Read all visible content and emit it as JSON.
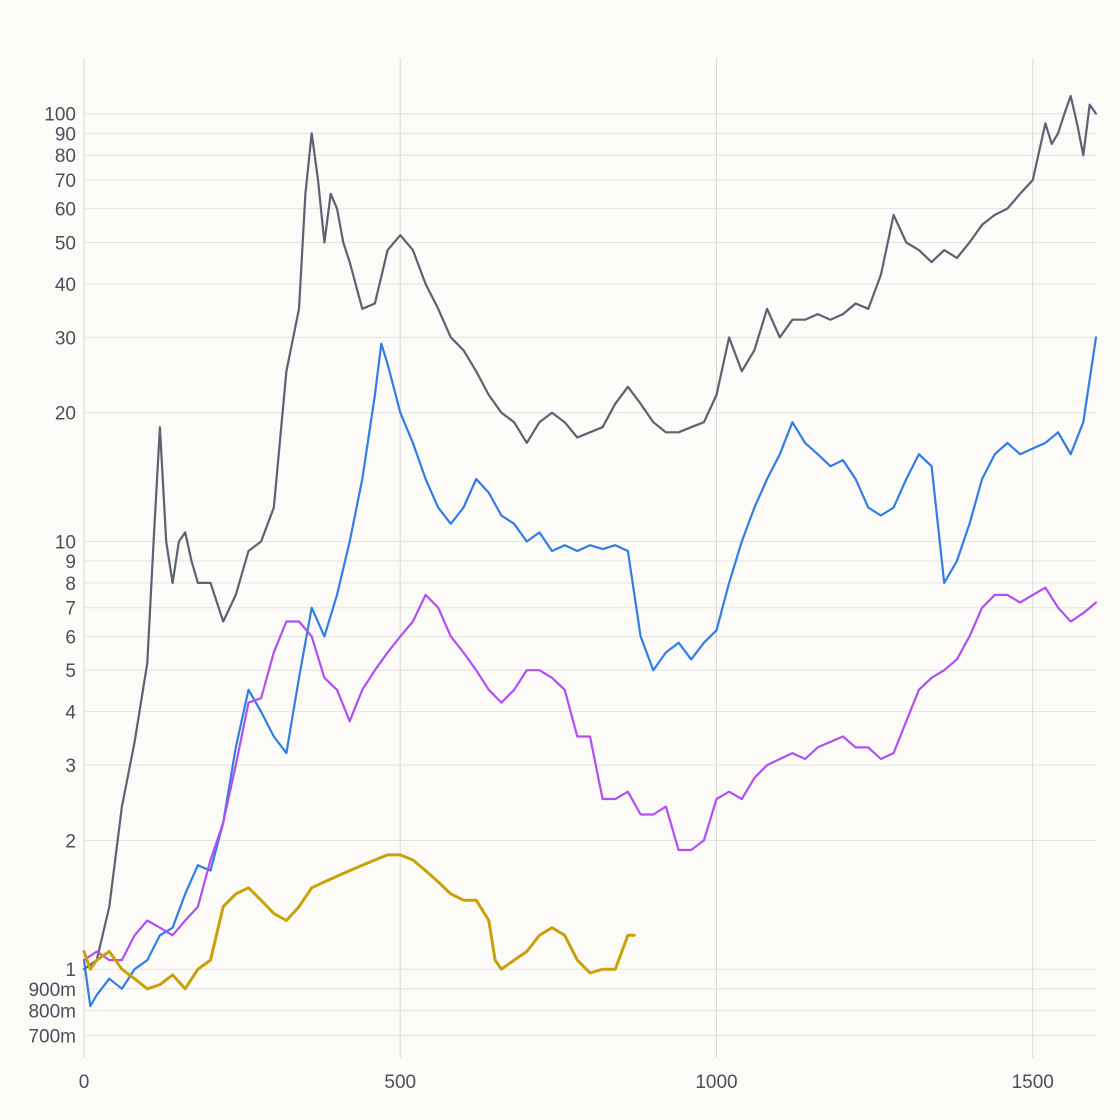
{
  "chart_data": {
    "type": "line",
    "title": "",
    "xlabel": "",
    "ylabel": "",
    "y_scale": "log",
    "xlim": [
      0,
      1600
    ],
    "ylim": [
      0.62,
      135
    ],
    "grid": true,
    "x_ticks": [
      {
        "value": 0,
        "label": "0"
      },
      {
        "value": 500,
        "label": "500"
      },
      {
        "value": 1000,
        "label": "1000"
      },
      {
        "value": 1500,
        "label": "1500"
      }
    ],
    "y_ticks": [
      {
        "value": 0.7,
        "label": "700m"
      },
      {
        "value": 0.8,
        "label": "800m"
      },
      {
        "value": 0.9,
        "label": "900m"
      },
      {
        "value": 1,
        "label": "1"
      },
      {
        "value": 2,
        "label": "2"
      },
      {
        "value": 3,
        "label": "3"
      },
      {
        "value": 4,
        "label": "4"
      },
      {
        "value": 5,
        "label": "5"
      },
      {
        "value": 6,
        "label": "6"
      },
      {
        "value": 7,
        "label": "7"
      },
      {
        "value": 8,
        "label": "8"
      },
      {
        "value": 9,
        "label": "9"
      },
      {
        "value": 10,
        "label": "10"
      },
      {
        "value": 20,
        "label": "20"
      },
      {
        "value": 30,
        "label": "30"
      },
      {
        "value": 40,
        "label": "40"
      },
      {
        "value": 50,
        "label": "50"
      },
      {
        "value": 60,
        "label": "60"
      },
      {
        "value": 70,
        "label": "70"
      },
      {
        "value": 80,
        "label": "80"
      },
      {
        "value": 90,
        "label": "90"
      },
      {
        "value": 100,
        "label": "100"
      }
    ],
    "series": [
      {
        "color": "#5b6272",
        "points": [
          [
            0,
            1
          ],
          [
            20,
            1.05
          ],
          [
            40,
            1.4
          ],
          [
            60,
            2.4
          ],
          [
            80,
            3.4
          ],
          [
            100,
            5.2
          ],
          [
            110,
            10
          ],
          [
            120,
            18.5
          ],
          [
            130,
            10
          ],
          [
            140,
            8
          ],
          [
            150,
            10
          ],
          [
            160,
            10.5
          ],
          [
            170,
            9
          ],
          [
            180,
            8
          ],
          [
            200,
            8
          ],
          [
            220,
            6.5
          ],
          [
            240,
            7.5
          ],
          [
            260,
            9.5
          ],
          [
            280,
            10
          ],
          [
            300,
            12
          ],
          [
            320,
            25
          ],
          [
            340,
            35
          ],
          [
            350,
            65
          ],
          [
            360,
            90
          ],
          [
            370,
            70
          ],
          [
            380,
            50
          ],
          [
            390,
            65
          ],
          [
            400,
            60
          ],
          [
            410,
            50
          ],
          [
            420,
            45
          ],
          [
            440,
            35
          ],
          [
            460,
            36
          ],
          [
            480,
            48
          ],
          [
            500,
            52
          ],
          [
            520,
            48
          ],
          [
            540,
            40
          ],
          [
            560,
            35
          ],
          [
            580,
            30
          ],
          [
            600,
            28
          ],
          [
            620,
            25
          ],
          [
            640,
            22
          ],
          [
            660,
            20
          ],
          [
            680,
            19
          ],
          [
            700,
            17
          ],
          [
            720,
            19
          ],
          [
            740,
            20
          ],
          [
            760,
            19
          ],
          [
            780,
            17.5
          ],
          [
            800,
            18
          ],
          [
            820,
            18.5
          ],
          [
            840,
            21
          ],
          [
            860,
            23
          ],
          [
            880,
            21
          ],
          [
            900,
            19
          ],
          [
            920,
            18
          ],
          [
            940,
            18
          ],
          [
            960,
            18.5
          ],
          [
            980,
            19
          ],
          [
            1000,
            22
          ],
          [
            1020,
            30
          ],
          [
            1040,
            25
          ],
          [
            1060,
            28
          ],
          [
            1080,
            35
          ],
          [
            1100,
            30
          ],
          [
            1120,
            33
          ],
          [
            1140,
            33
          ],
          [
            1160,
            34
          ],
          [
            1180,
            33
          ],
          [
            1200,
            34
          ],
          [
            1220,
            36
          ],
          [
            1240,
            35
          ],
          [
            1260,
            42
          ],
          [
            1280,
            58
          ],
          [
            1300,
            50
          ],
          [
            1320,
            48
          ],
          [
            1340,
            45
          ],
          [
            1360,
            48
          ],
          [
            1380,
            46
          ],
          [
            1400,
            50
          ],
          [
            1420,
            55
          ],
          [
            1440,
            58
          ],
          [
            1460,
            60
          ],
          [
            1480,
            65
          ],
          [
            1500,
            70
          ],
          [
            1520,
            95
          ],
          [
            1530,
            85
          ],
          [
            1540,
            90
          ],
          [
            1550,
            100
          ],
          [
            1560,
            110
          ],
          [
            1570,
            95
          ],
          [
            1580,
            80
          ],
          [
            1590,
            105
          ],
          [
            1600,
            100
          ]
        ]
      },
      {
        "color": "#2f7ee8",
        "points": [
          [
            0,
            1.05
          ],
          [
            10,
            0.82
          ],
          [
            20,
            0.87
          ],
          [
            40,
            0.95
          ],
          [
            60,
            0.9
          ],
          [
            80,
            1.0
          ],
          [
            100,
            1.05
          ],
          [
            120,
            1.2
          ],
          [
            140,
            1.25
          ],
          [
            160,
            1.5
          ],
          [
            180,
            1.75
          ],
          [
            200,
            1.7
          ],
          [
            220,
            2.2
          ],
          [
            240,
            3.3
          ],
          [
            260,
            4.5
          ],
          [
            280,
            4.0
          ],
          [
            300,
            3.5
          ],
          [
            320,
            3.2
          ],
          [
            340,
            4.8
          ],
          [
            360,
            7
          ],
          [
            380,
            6
          ],
          [
            400,
            7.5
          ],
          [
            420,
            10
          ],
          [
            440,
            14
          ],
          [
            460,
            22
          ],
          [
            470,
            29
          ],
          [
            480,
            26
          ],
          [
            500,
            20
          ],
          [
            520,
            17
          ],
          [
            540,
            14
          ],
          [
            560,
            12
          ],
          [
            580,
            11
          ],
          [
            600,
            12
          ],
          [
            620,
            14
          ],
          [
            640,
            13
          ],
          [
            660,
            11.5
          ],
          [
            680,
            11
          ],
          [
            700,
            10
          ],
          [
            720,
            10.5
          ],
          [
            740,
            9.5
          ],
          [
            760,
            9.8
          ],
          [
            780,
            9.5
          ],
          [
            800,
            9.8
          ],
          [
            820,
            9.6
          ],
          [
            840,
            9.8
          ],
          [
            860,
            9.5
          ],
          [
            880,
            6
          ],
          [
            900,
            5
          ],
          [
            920,
            5.5
          ],
          [
            940,
            5.8
          ],
          [
            960,
            5.3
          ],
          [
            980,
            5.8
          ],
          [
            1000,
            6.2
          ],
          [
            1020,
            8
          ],
          [
            1040,
            10
          ],
          [
            1060,
            12
          ],
          [
            1080,
            14
          ],
          [
            1100,
            16
          ],
          [
            1120,
            19
          ],
          [
            1140,
            17
          ],
          [
            1160,
            16
          ],
          [
            1180,
            15
          ],
          [
            1200,
            15.5
          ],
          [
            1220,
            14
          ],
          [
            1240,
            12
          ],
          [
            1260,
            11.5
          ],
          [
            1280,
            12
          ],
          [
            1300,
            14
          ],
          [
            1320,
            16
          ],
          [
            1340,
            15
          ],
          [
            1360,
            8
          ],
          [
            1380,
            9
          ],
          [
            1400,
            11
          ],
          [
            1420,
            14
          ],
          [
            1440,
            16
          ],
          [
            1460,
            17
          ],
          [
            1480,
            16
          ],
          [
            1500,
            16.5
          ],
          [
            1520,
            17
          ],
          [
            1540,
            18
          ],
          [
            1560,
            16
          ],
          [
            1580,
            19
          ],
          [
            1600,
            30
          ]
        ]
      },
      {
        "color": "#b14ff1",
        "points": [
          [
            0,
            1.05
          ],
          [
            20,
            1.1
          ],
          [
            40,
            1.05
          ],
          [
            60,
            1.05
          ],
          [
            80,
            1.2
          ],
          [
            100,
            1.3
          ],
          [
            120,
            1.25
          ],
          [
            140,
            1.2
          ],
          [
            160,
            1.3
          ],
          [
            180,
            1.4
          ],
          [
            200,
            1.8
          ],
          [
            220,
            2.2
          ],
          [
            240,
            3
          ],
          [
            260,
            4.2
          ],
          [
            280,
            4.3
          ],
          [
            300,
            5.5
          ],
          [
            320,
            6.5
          ],
          [
            340,
            6.5
          ],
          [
            360,
            6
          ],
          [
            380,
            4.8
          ],
          [
            400,
            4.5
          ],
          [
            420,
            3.8
          ],
          [
            440,
            4.5
          ],
          [
            460,
            5
          ],
          [
            480,
            5.5
          ],
          [
            500,
            6
          ],
          [
            520,
            6.5
          ],
          [
            540,
            7.5
          ],
          [
            560,
            7
          ],
          [
            580,
            6
          ],
          [
            600,
            5.5
          ],
          [
            620,
            5
          ],
          [
            640,
            4.5
          ],
          [
            660,
            4.2
          ],
          [
            680,
            4.5
          ],
          [
            700,
            5
          ],
          [
            720,
            5
          ],
          [
            740,
            4.8
          ],
          [
            760,
            4.5
          ],
          [
            780,
            3.5
          ],
          [
            800,
            3.5
          ],
          [
            820,
            2.5
          ],
          [
            840,
            2.5
          ],
          [
            860,
            2.6
          ],
          [
            880,
            2.3
          ],
          [
            900,
            2.3
          ],
          [
            920,
            2.4
          ],
          [
            940,
            1.9
          ],
          [
            960,
            1.9
          ],
          [
            980,
            2
          ],
          [
            1000,
            2.5
          ],
          [
            1020,
            2.6
          ],
          [
            1040,
            2.5
          ],
          [
            1060,
            2.8
          ],
          [
            1080,
            3
          ],
          [
            1100,
            3.1
          ],
          [
            1120,
            3.2
          ],
          [
            1140,
            3.1
          ],
          [
            1160,
            3.3
          ],
          [
            1180,
            3.4
          ],
          [
            1200,
            3.5
          ],
          [
            1220,
            3.3
          ],
          [
            1240,
            3.3
          ],
          [
            1260,
            3.1
          ],
          [
            1280,
            3.2
          ],
          [
            1300,
            3.8
          ],
          [
            1320,
            4.5
          ],
          [
            1340,
            4.8
          ],
          [
            1360,
            5
          ],
          [
            1380,
            5.3
          ],
          [
            1400,
            6
          ],
          [
            1420,
            7
          ],
          [
            1440,
            7.5
          ],
          [
            1460,
            7.5
          ],
          [
            1480,
            7.2
          ],
          [
            1500,
            7.5
          ],
          [
            1520,
            7.8
          ],
          [
            1540,
            7
          ],
          [
            1560,
            6.5
          ],
          [
            1580,
            6.8
          ],
          [
            1600,
            7.2
          ]
        ]
      },
      {
        "color": "#c9a10a",
        "points": [
          [
            0,
            1.1
          ],
          [
            10,
            1.0
          ],
          [
            20,
            1.05
          ],
          [
            40,
            1.1
          ],
          [
            60,
            1.0
          ],
          [
            80,
            0.95
          ],
          [
            100,
            0.9
          ],
          [
            120,
            0.92
          ],
          [
            140,
            0.97
          ],
          [
            160,
            0.9
          ],
          [
            180,
            1.0
          ],
          [
            200,
            1.05
          ],
          [
            220,
            1.4
          ],
          [
            240,
            1.5
          ],
          [
            260,
            1.55
          ],
          [
            280,
            1.45
          ],
          [
            300,
            1.35
          ],
          [
            320,
            1.3
          ],
          [
            340,
            1.4
          ],
          [
            360,
            1.55
          ],
          [
            380,
            1.6
          ],
          [
            400,
            1.65
          ],
          [
            420,
            1.7
          ],
          [
            440,
            1.75
          ],
          [
            460,
            1.8
          ],
          [
            480,
            1.85
          ],
          [
            500,
            1.85
          ],
          [
            520,
            1.8
          ],
          [
            540,
            1.7
          ],
          [
            560,
            1.6
          ],
          [
            580,
            1.5
          ],
          [
            600,
            1.45
          ],
          [
            620,
            1.45
          ],
          [
            640,
            1.3
          ],
          [
            650,
            1.05
          ],
          [
            660,
            1.0
          ],
          [
            680,
            1.05
          ],
          [
            700,
            1.1
          ],
          [
            720,
            1.2
          ],
          [
            740,
            1.25
          ],
          [
            760,
            1.2
          ],
          [
            780,
            1.05
          ],
          [
            800,
            0.98
          ],
          [
            820,
            1.0
          ],
          [
            840,
            1.0
          ],
          [
            860,
            1.2
          ],
          [
            870,
            1.2
          ]
        ]
      }
    ]
  }
}
